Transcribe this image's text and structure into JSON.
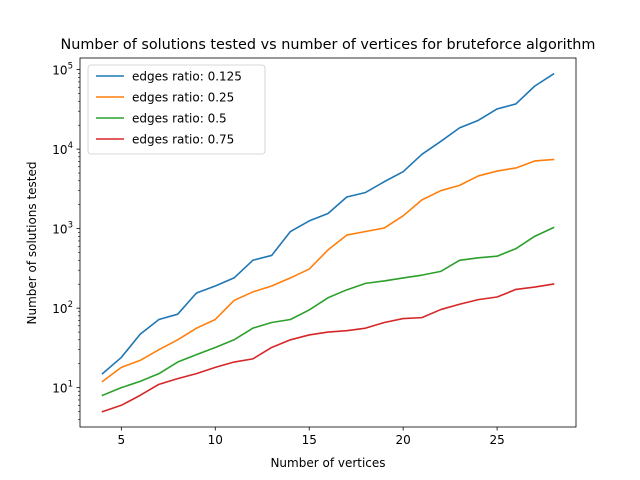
{
  "chart_data": {
    "type": "line",
    "title": "Number of solutions tested vs number of vertices for bruteforce algorithm",
    "xlabel": "Number of vertices",
    "ylabel": "Number of solutions tested",
    "xlim": [
      2.8,
      29.2
    ],
    "ylim": [
      3.2,
      140000
    ],
    "yscale": "log",
    "xticks": [
      5,
      10,
      15,
      20,
      25
    ],
    "yticks": [
      {
        "value": 10,
        "base": "10",
        "exp": "1"
      },
      {
        "value": 100,
        "base": "10",
        "exp": "2"
      },
      {
        "value": 1000,
        "base": "10",
        "exp": "3"
      },
      {
        "value": 10000,
        "base": "10",
        "exp": "4"
      },
      {
        "value": 100000,
        "base": "10",
        "exp": "5"
      }
    ],
    "grid": false,
    "legend_position": "top-left",
    "x": [
      4,
      5,
      6,
      7,
      8,
      9,
      10,
      11,
      12,
      13,
      14,
      15,
      16,
      17,
      18,
      19,
      20,
      21,
      22,
      23,
      24,
      25,
      26,
      27,
      28
    ],
    "series": [
      {
        "name": "edges ratio: 0.125",
        "color": "#1f77b4",
        "values": [
          15,
          24,
          47,
          72,
          84,
          155,
          190,
          240,
          400,
          460,
          920,
          1250,
          1550,
          2500,
          2850,
          3900,
          5200,
          8600,
          12500,
          18500,
          23000,
          32000,
          37000,
          62000,
          88000
        ]
      },
      {
        "name": "edges ratio: 0.25",
        "color": "#ff7f0e",
        "values": [
          12,
          18,
          22,
          30,
          40,
          56,
          72,
          125,
          160,
          190,
          240,
          310,
          540,
          830,
          920,
          1020,
          1450,
          2300,
          3000,
          3500,
          4600,
          5300,
          5800,
          7100,
          7400
        ]
      },
      {
        "name": "edges ratio: 0.5",
        "color": "#2ca02c",
        "values": [
          8,
          10,
          12,
          15,
          21,
          26,
          32,
          40,
          56,
          66,
          72,
          95,
          135,
          170,
          205,
          220,
          240,
          260,
          290,
          400,
          430,
          450,
          560,
          800,
          1030
        ]
      },
      {
        "name": "edges ratio: 0.75",
        "color": "#d62728",
        "values": [
          5,
          6,
          8,
          11,
          13,
          15,
          18,
          21,
          23,
          32,
          40,
          46,
          50,
          52,
          56,
          66,
          74,
          76,
          96,
          112,
          128,
          138,
          172,
          184,
          201
        ]
      }
    ]
  }
}
